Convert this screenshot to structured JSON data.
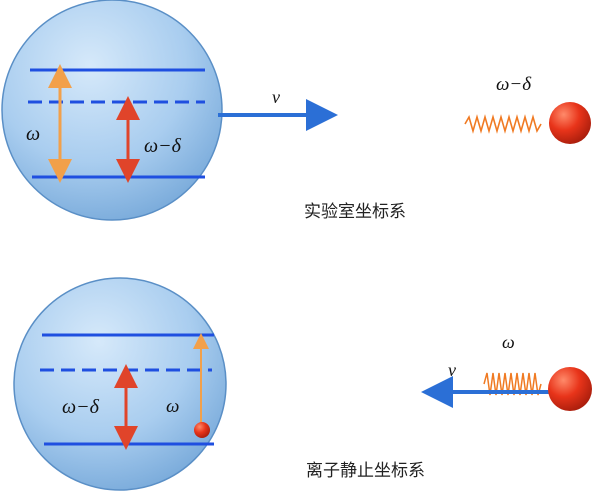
{
  "colors": {
    "sphere_light": "#cfe4f7",
    "sphere_dark": "#6fa6d8",
    "level_line": "#1f4fe0",
    "arrow_orange": "#f2a04a",
    "arrow_red": "#e0442a",
    "photon_orange": "#f07a22",
    "ion_red": "#e0331c",
    "velocity_blue": "#2b6fd6"
  },
  "lab_frame": {
    "omega_label": "ω",
    "detuned_label": "ω−δ",
    "velocity_label": "v",
    "photon_label": "ω−δ",
    "caption": "实验室坐标系"
  },
  "ion_frame": {
    "detuned_label": "ω−δ",
    "omega_label": "ω",
    "photon_label": "ω",
    "velocity_label": "v",
    "caption": "离子静止坐标系"
  }
}
